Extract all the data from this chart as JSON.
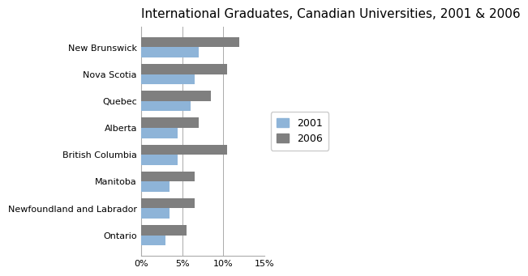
{
  "title": "International Graduates, Canadian Universities, 2001 & 2006",
  "categories": [
    "New Brunswick",
    "Nova Scotia",
    "Quebec",
    "Alberta",
    "British Columbia",
    "Manitoba",
    "Newfoundland and Labrador",
    "Ontario"
  ],
  "values_2001": [
    7,
    6.5,
    6,
    4.5,
    4.5,
    3.5,
    3.5,
    3
  ],
  "values_2006": [
    12,
    10.5,
    8.5,
    7,
    10.5,
    6.5,
    6.5,
    5.5
  ],
  "color_2001": "#8EB4D8",
  "color_2006": "#7F7F7F",
  "legend_labels": [
    "2001",
    "2006"
  ],
  "xlim": [
    0,
    15
  ],
  "xticks": [
    0,
    5,
    10,
    15
  ],
  "xtick_labels": [
    "0%",
    "5%",
    "10%",
    "15%"
  ],
  "bar_height": 0.38,
  "title_fontsize": 11,
  "tick_fontsize": 8,
  "legend_fontsize": 9,
  "background_color": "#ffffff"
}
